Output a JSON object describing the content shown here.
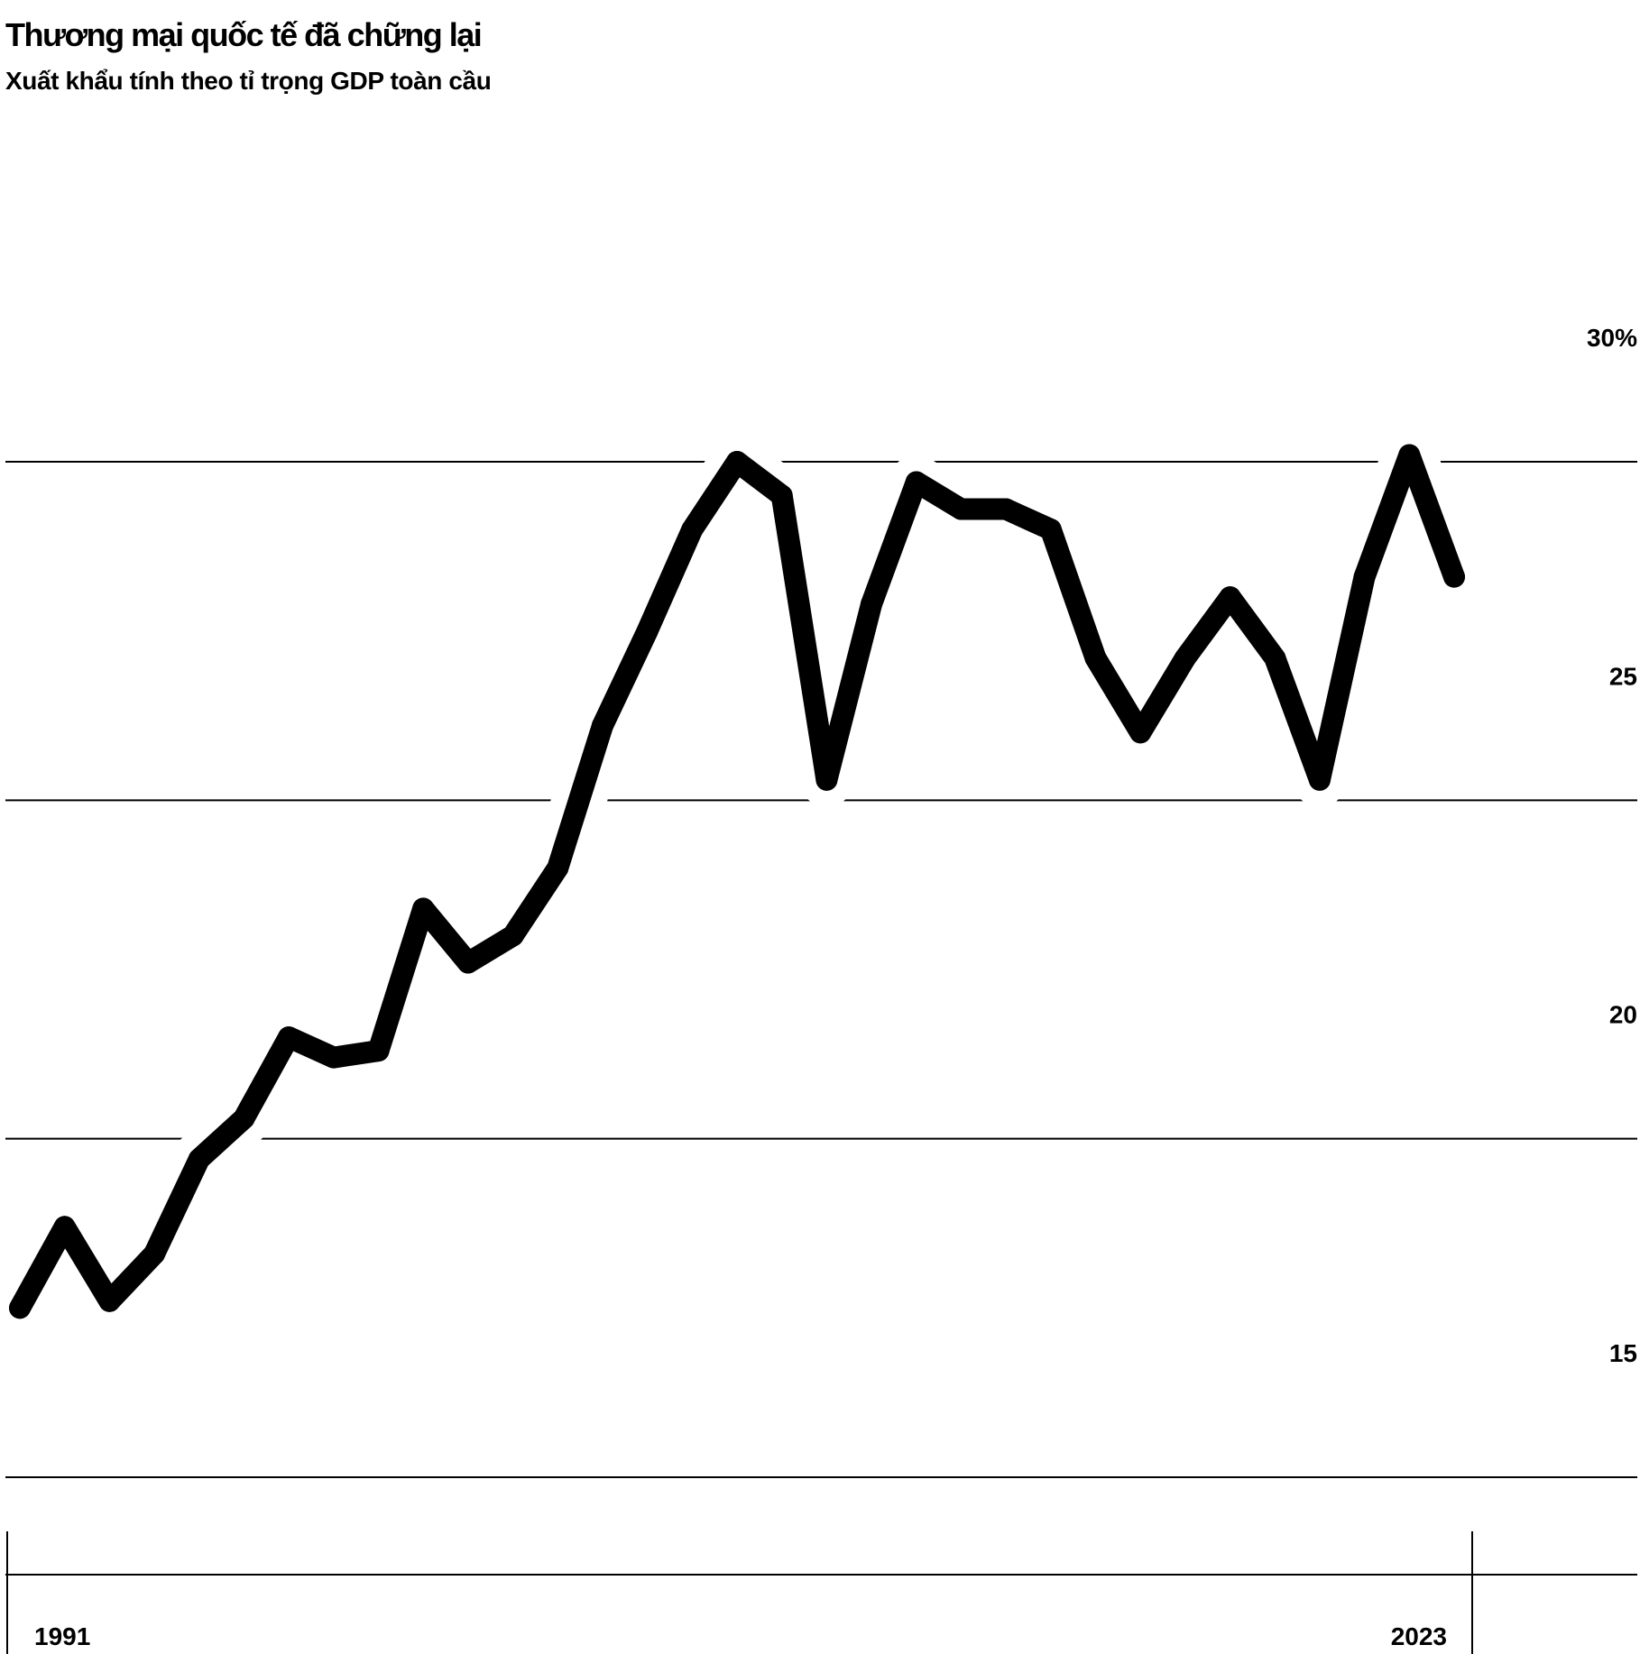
{
  "title": "Thương mại quốc tế đã chững lại",
  "subtitle": "Xuất khẩu tính theo tỉ trọng GDP toàn cầu",
  "colors": {
    "line": "#000000",
    "grid": "#000000",
    "background": "#ffffff"
  },
  "chart_data": {
    "type": "line",
    "title": "Thương mại quốc tế đã chững lại",
    "subtitle": "Xuất khẩu tính theo tỉ trọng GDP toàn cầu",
    "xlabel": "",
    "ylabel": "",
    "xlim": [
      1991,
      2024
    ],
    "ylim": [
      15,
      30
    ],
    "x_ticks": [
      1991,
      2023
    ],
    "x_tick_labels": [
      "1991",
      "2023"
    ],
    "y_ticks": [
      15,
      20,
      25,
      30
    ],
    "y_tick_labels": [
      "15",
      "20",
      "25",
      "30%"
    ],
    "y_axis_side": "right",
    "grid": true,
    "legend": "none",
    "series": [
      {
        "x": [
          1991,
          1992,
          1993,
          1994,
          1995,
          1996,
          1997,
          1998,
          1999,
          2000,
          2001,
          2002,
          2003,
          2004,
          2005,
          2006,
          2007,
          2008,
          2009,
          2010,
          2011,
          2012,
          2013,
          2014,
          2015,
          2016,
          2017,
          2018,
          2019,
          2020,
          2021,
          2022,
          2023
        ],
        "values": [
          17.5,
          18.7,
          17.6,
          18.3,
          19.7,
          20.3,
          21.5,
          21.2,
          21.3,
          23.4,
          22.6,
          23.0,
          24.0,
          26.1,
          27.5,
          29.0,
          30.0,
          29.5,
          25.3,
          27.9,
          29.7,
          29.3,
          29.3,
          29.0,
          27.1,
          26.0,
          27.1,
          28.0,
          27.1,
          25.3,
          28.3,
          30.1,
          28.3
        ]
      }
    ]
  }
}
